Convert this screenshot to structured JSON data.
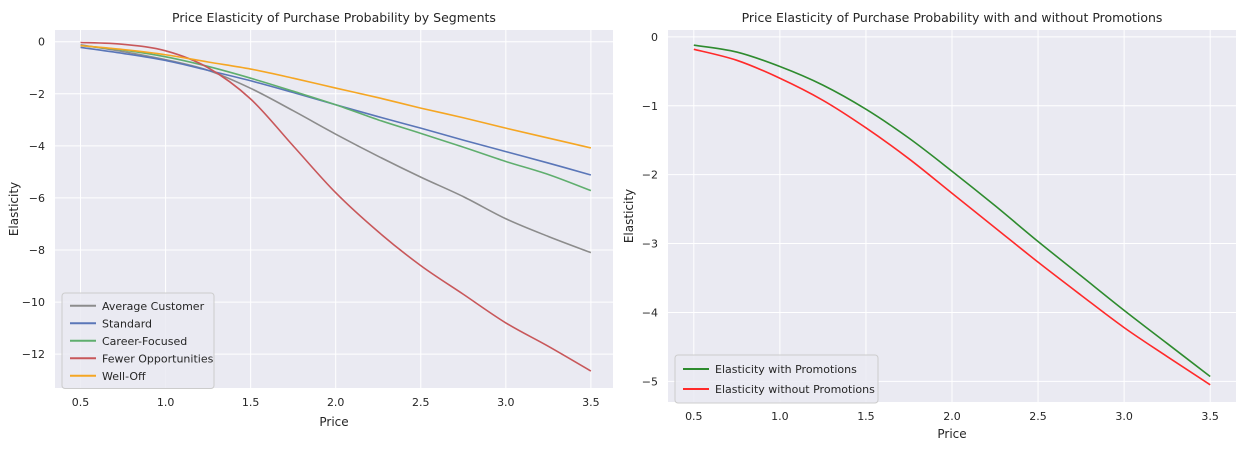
{
  "chart_data": [
    {
      "type": "line",
      "title": "Price Elasticity of Purchase Probability by Segments",
      "xlabel": "Price",
      "ylabel": "Elasticity",
      "xlim": [
        0.35,
        3.63
      ],
      "ylim": [
        -13.3,
        0.45
      ],
      "xticks": [
        0.5,
        1.0,
        1.5,
        2.0,
        2.5,
        3.0,
        3.5
      ],
      "yticks": [
        0,
        -2,
        -4,
        -6,
        -8,
        -10,
        -12
      ],
      "xtick_labels": [
        "0.5",
        "1.0",
        "1.5",
        "2.0",
        "2.5",
        "3.0",
        "3.5"
      ],
      "ytick_labels": [
        "0",
        "−2",
        "−4",
        "−6",
        "−8",
        "−10",
        "−12"
      ],
      "grid": true,
      "legend_position": "lower-left",
      "x": [
        0.5,
        0.75,
        1.0,
        1.25,
        1.5,
        1.75,
        2.0,
        2.25,
        2.5,
        2.75,
        3.0,
        3.25,
        3.5
      ],
      "series": [
        {
          "name": "Average Customer",
          "color": "#8c8c8c",
          "values": [
            -0.12,
            -0.38,
            -0.69,
            -1.1,
            -1.79,
            -2.65,
            -3.55,
            -4.4,
            -5.2,
            -5.95,
            -6.8,
            -7.48,
            -8.1
          ]
        },
        {
          "name": "Standard",
          "color": "#5a76b8",
          "values": [
            -0.22,
            -0.45,
            -0.72,
            -1.1,
            -1.5,
            -1.95,
            -2.42,
            -2.88,
            -3.32,
            -3.78,
            -4.22,
            -4.66,
            -5.12
          ]
        },
        {
          "name": "Career-Focused",
          "color": "#5fae6e",
          "values": [
            -0.15,
            -0.32,
            -0.58,
            -0.95,
            -1.4,
            -1.9,
            -2.42,
            -3.0,
            -3.52,
            -4.05,
            -4.6,
            -5.1,
            -5.72
          ]
        },
        {
          "name": "Fewer Opportunities",
          "color": "#c8575a",
          "values": [
            -0.03,
            -0.1,
            -0.35,
            -1.0,
            -2.2,
            -4.0,
            -5.8,
            -7.3,
            -8.6,
            -9.7,
            -10.8,
            -11.7,
            -12.65
          ]
        },
        {
          "name": "Well-Off",
          "color": "#f5a623",
          "values": [
            -0.15,
            -0.3,
            -0.5,
            -0.78,
            -1.05,
            -1.4,
            -1.78,
            -2.15,
            -2.55,
            -2.92,
            -3.32,
            -3.7,
            -4.08
          ]
        }
      ]
    },
    {
      "type": "line",
      "title": "Price Elasticity of Purchase Probability with and without Promotions",
      "xlabel": "Price",
      "ylabel": "Elasticity",
      "xlim": [
        0.35,
        3.65
      ],
      "ylim": [
        -5.3,
        0.1
      ],
      "xticks": [
        0.5,
        1.0,
        1.5,
        2.0,
        2.5,
        3.0,
        3.5
      ],
      "yticks": [
        0,
        -1,
        -2,
        -3,
        -4,
        -5
      ],
      "xtick_labels": [
        "0.5",
        "1.0",
        "1.5",
        "2.0",
        "2.5",
        "3.0",
        "3.5"
      ],
      "ytick_labels": [
        "0",
        "−1",
        "−2",
        "−3",
        "−4",
        "−5"
      ],
      "grid": true,
      "legend_position": "lower-left",
      "x": [
        0.5,
        0.75,
        1.0,
        1.25,
        1.5,
        1.75,
        2.0,
        2.25,
        2.5,
        2.75,
        3.0,
        3.25,
        3.5
      ],
      "series": [
        {
          "name": "Elasticity with Promotions",
          "color": "#2e8b2e",
          "values": [
            -0.12,
            -0.22,
            -0.43,
            -0.7,
            -1.05,
            -1.47,
            -1.95,
            -2.45,
            -2.97,
            -3.47,
            -3.97,
            -4.45,
            -4.93
          ]
        },
        {
          "name": "Elasticity without Promotions",
          "color": "#ff2a2a",
          "values": [
            -0.18,
            -0.34,
            -0.6,
            -0.92,
            -1.32,
            -1.77,
            -2.27,
            -2.77,
            -3.27,
            -3.75,
            -4.22,
            -4.64,
            -5.05
          ]
        }
      ]
    }
  ]
}
